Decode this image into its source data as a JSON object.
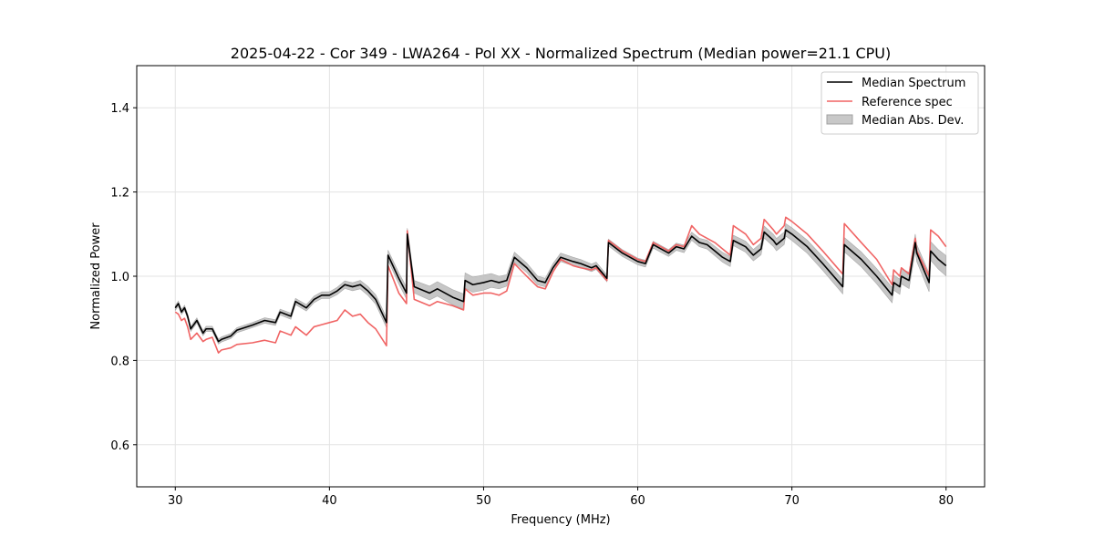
{
  "chart_data": {
    "type": "line",
    "title": "2025-04-22 - Cor 349 - LWA264 - Pol XX - Normalized Spectrum (Median power=21.1 CPU)",
    "xlabel": "Frequency (MHz)",
    "ylabel": "Normalized Power",
    "xlim": [
      27.5,
      82.5
    ],
    "ylim": [
      0.5,
      1.5
    ],
    "xticks": [
      30,
      40,
      50,
      60,
      70,
      80
    ],
    "yticks": [
      0.6,
      0.8,
      1.0,
      1.2,
      1.4
    ],
    "xtick_labels": [
      "30",
      "40",
      "50",
      "60",
      "70",
      "80"
    ],
    "ytick_labels": [
      "0.6",
      "0.8",
      "1.0",
      "1.2",
      "1.4"
    ],
    "grid": true,
    "legend_position": "top-right",
    "colors": {
      "median": "#000000",
      "reference": "#f06464",
      "band": "#c0c0c0"
    },
    "legend": [
      {
        "label": "Median Spectrum",
        "kind": "line",
        "color": "#000000"
      },
      {
        "label": "Reference spec",
        "kind": "line",
        "color": "#f06464"
      },
      {
        "label": "Median Abs. Dev.",
        "kind": "patch",
        "color": "#c0c0c0"
      }
    ],
    "series": [
      {
        "name": "Median Spectrum",
        "x": [
          30.0,
          30.2,
          30.4,
          30.6,
          30.8,
          31.0,
          31.4,
          31.8,
          32.0,
          32.4,
          32.8,
          33.0,
          33.6,
          34.0,
          35.0,
          35.8,
          36.5,
          36.8,
          37.5,
          37.8,
          38.5,
          39.0,
          39.5,
          40.0,
          40.5,
          41.0,
          41.5,
          42.0,
          42.5,
          43.0,
          43.7,
          43.8,
          44.5,
          45.0,
          45.05,
          45.5,
          46.5,
          47.0,
          48.0,
          48.7,
          48.8,
          49.3,
          50.0,
          50.5,
          51.0,
          51.5,
          52.0,
          52.8,
          53.5,
          54.0,
          54.5,
          55.0,
          55.8,
          56.3,
          57.0,
          57.3,
          58.0,
          58.1,
          59.0,
          60.0,
          60.5,
          61.0,
          62.0,
          62.5,
          63.0,
          63.5,
          64.0,
          64.5,
          65.0,
          65.5,
          66.0,
          66.2,
          67.0,
          67.5,
          68.0,
          68.2,
          68.8,
          69.0,
          69.5,
          69.6,
          70.0,
          71.0,
          72.0,
          73.3,
          73.4,
          74.5,
          75.5,
          76.5,
          76.6,
          77.0,
          77.1,
          77.6,
          78.0,
          78.1,
          78.9,
          79.0,
          79.5,
          80.0
        ],
        "values": [
          0.925,
          0.935,
          0.915,
          0.925,
          0.905,
          0.875,
          0.895,
          0.865,
          0.875,
          0.875,
          0.845,
          0.85,
          0.858,
          0.872,
          0.884,
          0.895,
          0.89,
          0.915,
          0.905,
          0.94,
          0.925,
          0.945,
          0.955,
          0.955,
          0.965,
          0.98,
          0.975,
          0.98,
          0.965,
          0.945,
          0.89,
          1.05,
          0.995,
          0.96,
          1.1,
          0.975,
          0.96,
          0.97,
          0.95,
          0.94,
          0.99,
          0.98,
          0.985,
          0.99,
          0.985,
          0.99,
          1.045,
          1.02,
          0.99,
          0.985,
          1.02,
          1.045,
          1.035,
          1.03,
          1.02,
          1.025,
          0.995,
          1.08,
          1.055,
          1.035,
          1.03,
          1.075,
          1.055,
          1.07,
          1.065,
          1.095,
          1.08,
          1.075,
          1.06,
          1.045,
          1.035,
          1.085,
          1.07,
          1.05,
          1.065,
          1.105,
          1.085,
          1.075,
          1.09,
          1.11,
          1.1,
          1.07,
          1.03,
          0.975,
          1.075,
          1.04,
          1.0,
          0.955,
          0.985,
          0.975,
          1.0,
          0.99,
          1.08,
          1.055,
          0.985,
          1.06,
          1.04,
          1.025
        ]
      },
      {
        "name": "Reference spec",
        "x": [
          30.0,
          30.2,
          30.4,
          30.6,
          30.8,
          31.0,
          31.4,
          31.8,
          32.0,
          32.4,
          32.8,
          33.0,
          33.6,
          34.0,
          35.0,
          35.8,
          36.5,
          36.8,
          37.5,
          37.8,
          38.5,
          39.0,
          39.5,
          40.0,
          40.5,
          41.0,
          41.5,
          42.0,
          42.5,
          43.0,
          43.7,
          43.8,
          44.5,
          45.0,
          45.05,
          45.5,
          46.5,
          47.0,
          48.0,
          48.7,
          48.8,
          49.3,
          50.0,
          50.5,
          51.0,
          51.5,
          52.0,
          52.8,
          53.5,
          54.0,
          54.5,
          55.0,
          55.8,
          56.3,
          57.0,
          57.3,
          58.0,
          58.1,
          59.0,
          60.0,
          60.5,
          61.0,
          62.0,
          62.5,
          63.0,
          63.5,
          64.0,
          64.5,
          65.0,
          65.5,
          66.0,
          66.2,
          67.0,
          67.5,
          68.0,
          68.2,
          68.8,
          69.0,
          69.5,
          69.6,
          70.0,
          71.0,
          72.0,
          73.3,
          73.4,
          74.5,
          75.5,
          76.5,
          76.6,
          77.0,
          77.1,
          77.6,
          78.0,
          78.1,
          78.9,
          79.0,
          79.5,
          80.0
        ],
        "values": [
          0.915,
          0.91,
          0.895,
          0.9,
          0.88,
          0.85,
          0.865,
          0.845,
          0.85,
          0.855,
          0.818,
          0.825,
          0.83,
          0.838,
          0.842,
          0.848,
          0.842,
          0.87,
          0.86,
          0.88,
          0.86,
          0.88,
          0.885,
          0.89,
          0.895,
          0.92,
          0.905,
          0.91,
          0.89,
          0.875,
          0.835,
          1.025,
          0.96,
          0.935,
          1.108,
          0.945,
          0.93,
          0.94,
          0.93,
          0.92,
          0.97,
          0.955,
          0.96,
          0.96,
          0.955,
          0.965,
          1.03,
          1.0,
          0.975,
          0.97,
          1.01,
          1.04,
          1.025,
          1.02,
          1.015,
          1.02,
          0.99,
          1.085,
          1.06,
          1.04,
          1.035,
          1.08,
          1.06,
          1.075,
          1.07,
          1.12,
          1.1,
          1.09,
          1.08,
          1.065,
          1.05,
          1.12,
          1.1,
          1.075,
          1.09,
          1.135,
          1.11,
          1.1,
          1.12,
          1.14,
          1.13,
          1.1,
          1.06,
          1.005,
          1.125,
          1.08,
          1.04,
          0.98,
          1.015,
          1.0,
          1.02,
          1.005,
          1.09,
          1.06,
          1.0,
          1.11,
          1.095,
          1.07
        ]
      },
      {
        "name": "Median Abs. Dev.",
        "x": [
          30.0,
          31.0,
          32.0,
          33.0,
          35.0,
          37.0,
          40.0,
          42.0,
          43.7,
          43.8,
          45.0,
          46.0,
          48.0,
          50.0,
          52.0,
          54.0,
          56.0,
          58.0,
          60.0,
          62.0,
          64.0,
          66.0,
          68.0,
          70.0,
          72.0,
          73.3,
          73.4,
          75.0,
          76.5,
          77.0,
          78.0,
          79.0,
          80.0
        ],
        "half_width": [
          0.006,
          0.006,
          0.006,
          0.006,
          0.006,
          0.007,
          0.008,
          0.01,
          0.012,
          0.012,
          0.014,
          0.016,
          0.018,
          0.018,
          0.012,
          0.01,
          0.01,
          0.008,
          0.008,
          0.008,
          0.01,
          0.012,
          0.014,
          0.015,
          0.016,
          0.017,
          0.017,
          0.018,
          0.018,
          0.018,
          0.02,
          0.022,
          0.024
        ]
      }
    ]
  }
}
